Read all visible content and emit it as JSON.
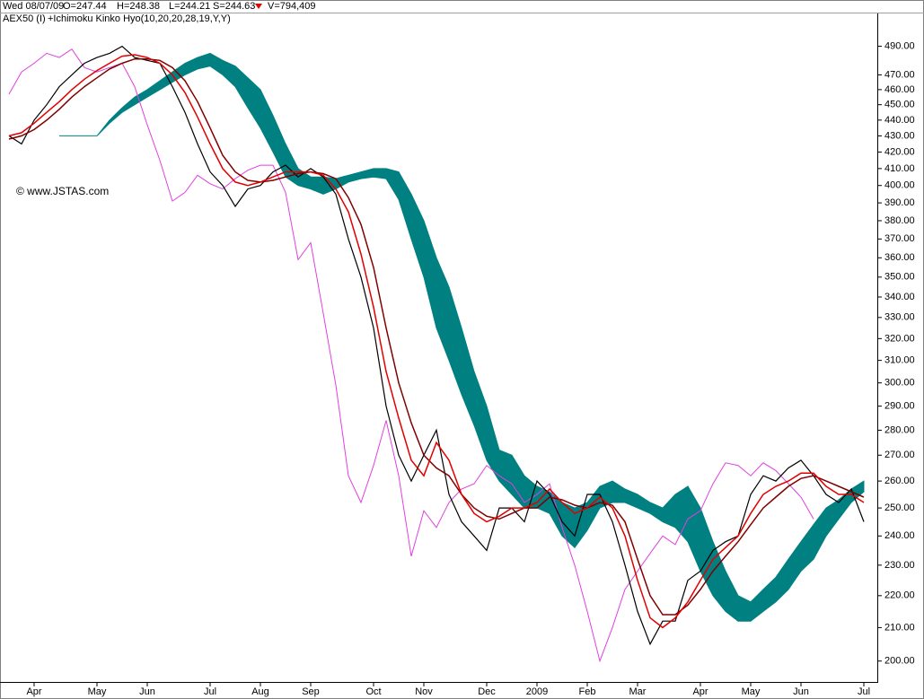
{
  "chart_data": {
    "type": "ichimoku",
    "header_items": [
      "Wed 08/07/09",
      "O=247.44",
      "H=248.38",
      "L=244.21",
      "S=244.63",
      "V=794,409"
    ],
    "legend_items": [
      {
        "text": "AEX50 (I)",
        "color": "#000000"
      },
      {
        "text": "+Ichimoku Kinko Hyo(10,20,20,28,19,Y,Y)",
        "color": "#008080"
      }
    ],
    "annotation": "© www.JSTAS.com",
    "log_scale": true,
    "ylim": [
      194,
      514
    ],
    "yticks": [
      {
        "value": 490,
        "label": "490.00"
      },
      {
        "value": 470,
        "label": "470.00"
      },
      {
        "value": 460,
        "label": "460.00"
      },
      {
        "value": 450,
        "label": "450.00"
      },
      {
        "value": 440,
        "label": "440.00"
      },
      {
        "value": 430,
        "label": "430.00"
      },
      {
        "value": 420,
        "label": "420.00"
      },
      {
        "value": 410,
        "label": "410.00"
      },
      {
        "value": 400,
        "label": "400.00"
      },
      {
        "value": 390,
        "label": "390.00"
      },
      {
        "value": 380,
        "label": "380.00"
      },
      {
        "value": 370,
        "label": "370.00"
      },
      {
        "value": 360,
        "label": "360.00"
      },
      {
        "value": 350,
        "label": "350.00"
      },
      {
        "value": 340,
        "label": "340.00"
      },
      {
        "value": 330,
        "label": "330.00"
      },
      {
        "value": 320,
        "label": "320.00"
      },
      {
        "value": 310,
        "label": "310.00"
      },
      {
        "value": 300,
        "label": "300.00"
      },
      {
        "value": 290,
        "label": "290.00"
      },
      {
        "value": 280,
        "label": "280.00"
      },
      {
        "value": 270,
        "label": "270.00"
      },
      {
        "value": 260,
        "label": "260.00"
      },
      {
        "value": 250,
        "label": "250.00"
      },
      {
        "value": 240,
        "label": "240.00"
      },
      {
        "value": 230,
        "label": "230.00"
      },
      {
        "value": 220,
        "label": "220.00"
      },
      {
        "value": 210,
        "label": "210.00"
      },
      {
        "value": 200,
        "label": "200.00"
      }
    ],
    "categories": [
      null,
      null,
      "Apr",
      null,
      null,
      null,
      null,
      "May",
      null,
      null,
      null,
      "Jun",
      null,
      null,
      null,
      null,
      "Jul",
      null,
      null,
      null,
      "Aug",
      null,
      null,
      null,
      "Sep",
      null,
      null,
      null,
      null,
      "Oct",
      null,
      null,
      null,
      "Nov",
      null,
      null,
      null,
      null,
      "Dec",
      null,
      null,
      null,
      "2009",
      null,
      null,
      null,
      "Feb",
      null,
      null,
      null,
      "Mar",
      null,
      null,
      null,
      null,
      "Apr",
      null,
      null,
      null,
      "May",
      null,
      null,
      null,
      "Jun",
      null,
      null,
      null,
      null,
      "Jul"
    ],
    "series": [
      {
        "color": "#000000",
        "width": 1.2,
        "values": [
          430,
          425,
          440,
          450,
          462,
          470,
          478,
          482,
          485,
          490,
          482,
          480,
          478,
          462,
          445,
          425,
          408,
          400,
          388,
          398,
          400,
          408,
          412,
          405,
          410,
          405,
          395,
          370,
          350,
          325,
          290,
          270,
          260,
          270,
          280,
          255,
          245,
          240,
          235,
          250,
          250,
          245,
          260,
          255,
          245,
          240,
          255,
          255,
          245,
          230,
          215,
          205,
          212,
          212,
          225,
          228,
          235,
          238,
          240,
          255,
          262,
          260,
          265,
          268,
          262,
          255,
          252,
          257,
          245
        ]
      },
      {
        "color": "#e00000",
        "width": 1.5,
        "values": [
          430,
          432,
          438,
          445,
          452,
          460,
          467,
          473,
          478,
          483,
          484,
          482,
          478,
          470,
          458,
          442,
          425,
          410,
          402,
          400,
          402,
          405,
          408,
          408,
          408,
          406,
          398,
          385,
          362,
          335,
          305,
          285,
          268,
          262,
          275,
          268,
          255,
          248,
          245,
          247,
          250,
          250,
          252,
          257,
          252,
          248,
          250,
          254,
          250,
          240,
          225,
          213,
          210,
          213,
          218,
          225,
          232,
          236,
          240,
          248,
          255,
          258,
          260,
          263,
          263,
          258,
          255,
          255,
          252
        ]
      },
      {
        "color": "#800000",
        "width": 1.5,
        "values": [
          428,
          430,
          434,
          440,
          447,
          455,
          462,
          468,
          474,
          478,
          481,
          481,
          480,
          475,
          466,
          452,
          435,
          418,
          408,
          403,
          402,
          403,
          405,
          407,
          408,
          407,
          404,
          393,
          378,
          355,
          325,
          300,
          283,
          270,
          265,
          262,
          255,
          250,
          247,
          246,
          248,
          250,
          250,
          254,
          253,
          251,
          250,
          252,
          251,
          245,
          232,
          220,
          214,
          214,
          217,
          222,
          228,
          233,
          238,
          244,
          250,
          254,
          258,
          261,
          262,
          260,
          258,
          256,
          254
        ]
      },
      {
        "color": "#e040e0",
        "width": 1,
        "values": [
          457,
          472,
          478,
          485,
          482,
          488,
          475,
          472,
          475,
          478,
          462,
          437,
          415,
          391,
          396,
          406,
          401,
          398,
          404,
          409,
          412,
          412,
          396,
          359,
          368,
          332,
          299,
          262,
          252,
          266,
          284,
          262,
          233,
          249,
          243,
          252,
          257,
          259,
          266,
          262,
          259,
          252,
          255,
          259,
          243,
          230,
          215,
          200,
          210,
          222,
          228,
          234,
          240,
          237,
          246,
          249,
          259,
          267,
          266,
          262,
          267,
          264,
          259,
          254,
          246,
          null,
          null,
          null,
          null
        ]
      }
    ],
    "cloud": {
      "color": "#008080",
      "upper": [
        null,
        null,
        null,
        null,
        430,
        430,
        430,
        430,
        440,
        448,
        455,
        460,
        466,
        472,
        478,
        482,
        485,
        480,
        476,
        468,
        460,
        443,
        425,
        410,
        405,
        405,
        404,
        406,
        408,
        410,
        410,
        408,
        395,
        380,
        360,
        345,
        325,
        305,
        290,
        272,
        270,
        262,
        258,
        256,
        252,
        250,
        252,
        258,
        260,
        257,
        255,
        252,
        250,
        255,
        258,
        250,
        238,
        228,
        220,
        218,
        222,
        226,
        232,
        238,
        244,
        250,
        253,
        257,
        260
      ],
      "lower": [
        null,
        null,
        null,
        null,
        430,
        430,
        430,
        430,
        438,
        445,
        450,
        455,
        460,
        465,
        470,
        474,
        476,
        470,
        462,
        448,
        435,
        420,
        405,
        400,
        398,
        395,
        398,
        402,
        404,
        405,
        404,
        392,
        370,
        350,
        325,
        310,
        295,
        282,
        268,
        260,
        255,
        250,
        250,
        248,
        240,
        236,
        242,
        250,
        252,
        252,
        250,
        248,
        245,
        243,
        238,
        228,
        220,
        215,
        212,
        212,
        215,
        218,
        222,
        228,
        232,
        240,
        246,
        252,
        256
      ]
    }
  }
}
